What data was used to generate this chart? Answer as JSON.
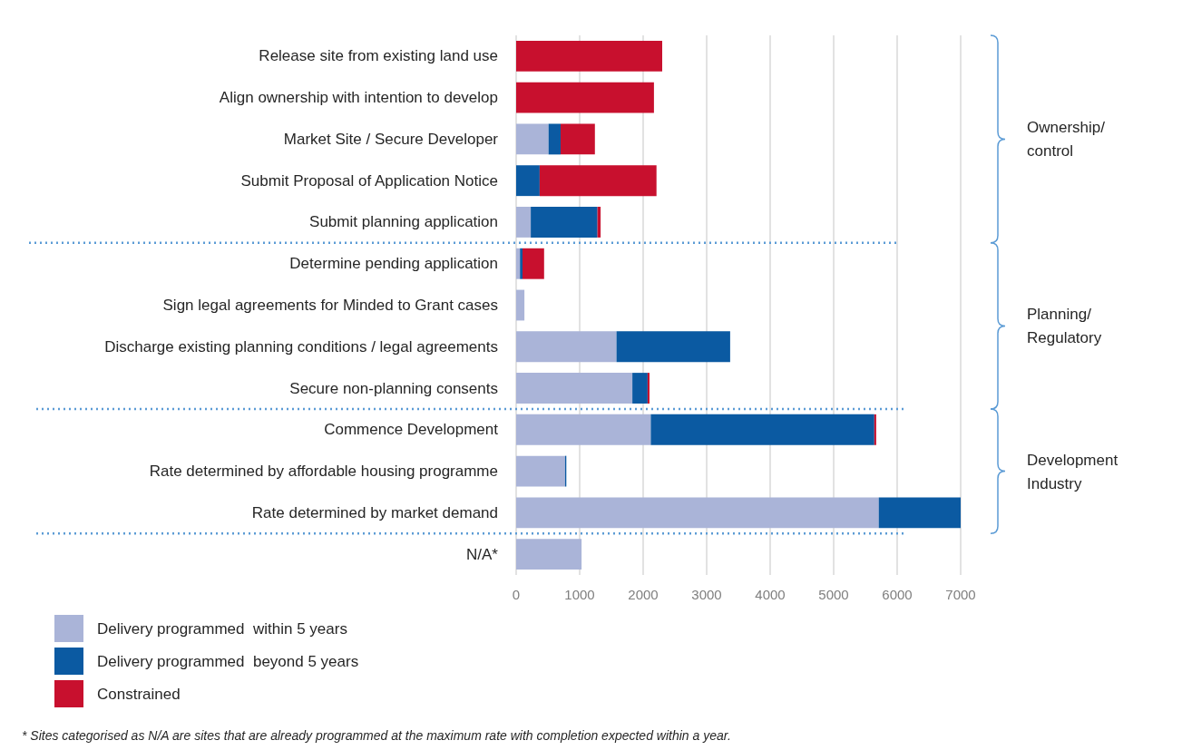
{
  "chart_data": {
    "type": "bar",
    "orientation": "horizontal",
    "stacked": true,
    "categories": [
      "Release site from existing land use",
      "Align ownership with intention to develop",
      "Market Site / Secure Developer",
      "Submit Proposal of Application Notice",
      "Submit planning application",
      "Determine pending application",
      "Sign legal agreements for Minded to Grant cases",
      "Discharge existing planning conditions / legal agreements",
      "Secure non-planning consents",
      "Commence Development",
      "Rate determined by affordable housing programme",
      "Rate determined by market demand",
      "N/A*"
    ],
    "series": [
      {
        "name": "Delivery programmed  within 5 years",
        "color": "#aab4d8",
        "values": [
          0,
          0,
          510,
          0,
          230,
          60,
          130,
          1580,
          1830,
          2120,
          770,
          5710,
          1030
        ]
      },
      {
        "name": "Delivery programmed  beyond 5 years",
        "color": "#0b5aa2",
        "values": [
          0,
          0,
          190,
          370,
          1050,
          40,
          0,
          1790,
          240,
          3520,
          20,
          1290,
          0
        ]
      },
      {
        "name": "Constrained",
        "color": "#c8102e",
        "values": [
          2300,
          2170,
          540,
          1840,
          50,
          340,
          0,
          0,
          30,
          30,
          0,
          0,
          0
        ]
      }
    ],
    "xlim": [
      0,
      7000
    ],
    "xticks": [
      0,
      1000,
      2000,
      3000,
      4000,
      5000,
      6000,
      7000
    ],
    "grid": "x",
    "legend": "bottom left",
    "annotations": [
      "Ownership/\ncontrol",
      "Planning/\nRegulatory",
      "Development\nIndustry",
      "* Sites categorised as N/A are sites that are already programmed at the maximum rate with completion expected within a year."
    ]
  }
}
